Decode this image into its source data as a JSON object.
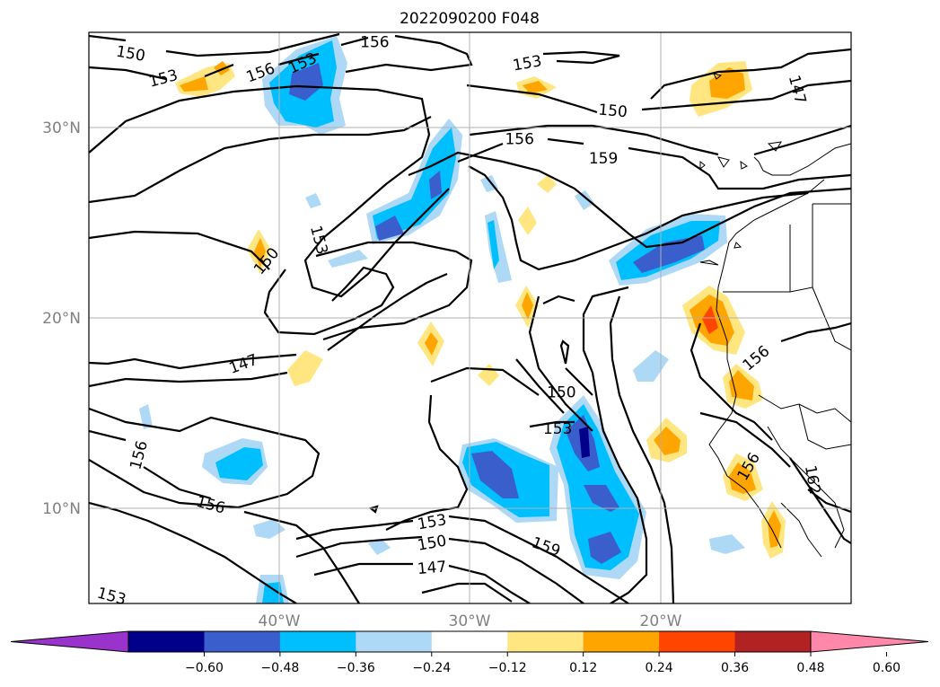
{
  "title": "2022090200 F048",
  "x_ticks": [
    {
      "label": "40°W",
      "lon": -40
    },
    {
      "label": "30°W",
      "lon": -30
    },
    {
      "label": "20°W",
      "lon": -20
    }
  ],
  "y_ticks": [
    {
      "label": "30°N",
      "lat": 30
    },
    {
      "label": "20°N",
      "lat": 20
    },
    {
      "label": "10°N",
      "lat": 10
    }
  ],
  "extent": {
    "lon_min": -50,
    "lon_max": -10,
    "lat_min": 5,
    "lat_max": 35
  },
  "contour_labels": [
    {
      "text": "150",
      "lon": -47.8,
      "lat": 33.9,
      "rot": 10
    },
    {
      "text": "156",
      "lon": -35.0,
      "lat": 34.5,
      "rot": 0
    },
    {
      "text": "153",
      "lon": -46.1,
      "lat": 32.6,
      "rot": -15
    },
    {
      "text": "156",
      "lon": -41.0,
      "lat": 32.9,
      "rot": -20
    },
    {
      "text": "153",
      "lon": -38.8,
      "lat": 33.4,
      "rot": -25
    },
    {
      "text": "153",
      "lon": -27.0,
      "lat": 33.4,
      "rot": -10
    },
    {
      "text": "150",
      "lon": -22.5,
      "lat": 30.9,
      "rot": 5
    },
    {
      "text": "147",
      "lon": -12.8,
      "lat": 32.0,
      "rot": 75
    },
    {
      "text": "156",
      "lon": -27.4,
      "lat": 29.4,
      "rot": 0
    },
    {
      "text": "159",
      "lon": -23.0,
      "lat": 28.4,
      "rot": 0
    },
    {
      "text": "153",
      "lon": -37.9,
      "lat": 24.1,
      "rot": 75
    },
    {
      "text": "150",
      "lon": -40.7,
      "lat": 23.0,
      "rot": -50
    },
    {
      "text": "147",
      "lon": -41.9,
      "lat": 17.6,
      "rot": -20
    },
    {
      "text": "150",
      "lon": -25.2,
      "lat": 16.1,
      "rot": 0
    },
    {
      "text": "153",
      "lon": -25.4,
      "lat": 14.2,
      "rot": 0
    },
    {
      "text": "156",
      "lon": -15.0,
      "lat": 17.9,
      "rot": -40
    },
    {
      "text": "156",
      "lon": -47.4,
      "lat": 12.8,
      "rot": -75
    },
    {
      "text": "156",
      "lon": -43.6,
      "lat": 10.2,
      "rot": 15
    },
    {
      "text": "153",
      "lon": -32.0,
      "lat": 9.3,
      "rot": -10
    },
    {
      "text": "150",
      "lon": -32.0,
      "lat": 8.2,
      "rot": -10
    },
    {
      "text": "147",
      "lon": -32.0,
      "lat": 6.9,
      "rot": -5
    },
    {
      "text": "159",
      "lon": -26.0,
      "lat": 8.0,
      "rot": 20
    },
    {
      "text": "162",
      "lon": -12.0,
      "lat": 11.5,
      "rot": 80
    },
    {
      "text": "153",
      "lon": -48.8,
      "lat": 5.4,
      "rot": 15
    },
    {
      "text": "156",
      "lon": -15.4,
      "lat": 12.2,
      "rot": -60
    }
  ],
  "colorbar": {
    "ticks": [
      "−0.60",
      "−0.48",
      "−0.36",
      "−0.24",
      "−0.12",
      "0.12",
      "0.24",
      "0.36",
      "0.48",
      "0.60"
    ],
    "colors": [
      "#9933cc",
      "#00008b",
      "#3a5fcd",
      "#00bfff",
      "#add8f6",
      "#ffffff",
      "#ffe680",
      "#ffa500",
      "#ff4500",
      "#b22222",
      "#ff88aa"
    ]
  }
}
